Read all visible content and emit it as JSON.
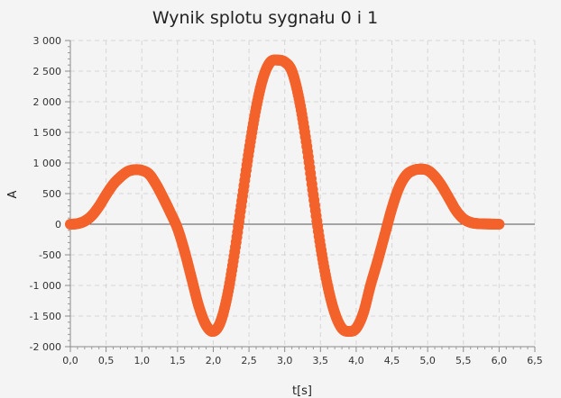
{
  "chart_data": {
    "type": "scatter",
    "title": "Wynik splotu sygnału 0 i 1",
    "xlabel": "t[s]",
    "ylabel": "A",
    "xlim": [
      0.0,
      6.5
    ],
    "ylim": [
      -2000,
      3000
    ],
    "x_ticks": [
      "0,0",
      "0,5",
      "1,0",
      "1,5",
      "2,0",
      "2,5",
      "3,0",
      "3,5",
      "4,0",
      "4,5",
      "5,0",
      "5,5",
      "6,0",
      "6,5"
    ],
    "y_ticks": [
      "3 000",
      "2 500",
      "2 000",
      "1 500",
      "1 000",
      "500",
      "0",
      "-500",
      "-1 000",
      "-1 500",
      "-2 000"
    ],
    "grid": true,
    "legend": "none",
    "series": [
      {
        "color": "#f4622c",
        "x": [
          0.0,
          0.1,
          0.2,
          0.3,
          0.4,
          0.5,
          0.6,
          0.7,
          0.8,
          0.9,
          1.0,
          1.1,
          1.2,
          1.3,
          1.4,
          1.5,
          1.6,
          1.7,
          1.8,
          1.9,
          2.0,
          2.1,
          2.2,
          2.3,
          2.4,
          2.5,
          2.6,
          2.7,
          2.8,
          2.9,
          3.0,
          3.1,
          3.2,
          3.3,
          3.4,
          3.5,
          3.6,
          3.7,
          3.8,
          3.9,
          4.0,
          4.1,
          4.2,
          4.3,
          4.4,
          4.5,
          4.6,
          4.7,
          4.8,
          4.9,
          5.0,
          5.1,
          5.2,
          5.3,
          5.4,
          5.5,
          5.6,
          5.7,
          5.8,
          5.9,
          6.0
        ],
        "y": [
          0,
          10,
          50,
          140,
          290,
          480,
          650,
          770,
          860,
          890,
          880,
          820,
          650,
          430,
          190,
          -70,
          -450,
          -900,
          -1350,
          -1650,
          -1750,
          -1600,
          -1150,
          -450,
          380,
          1200,
          1900,
          2400,
          2650,
          2680,
          2650,
          2500,
          2050,
          1350,
          480,
          -350,
          -1000,
          -1450,
          -1700,
          -1750,
          -1700,
          -1450,
          -1000,
          -600,
          -170,
          260,
          600,
          800,
          880,
          900,
          880,
          780,
          620,
          420,
          220,
          90,
          30,
          10,
          5,
          2,
          0
        ]
      }
    ]
  }
}
